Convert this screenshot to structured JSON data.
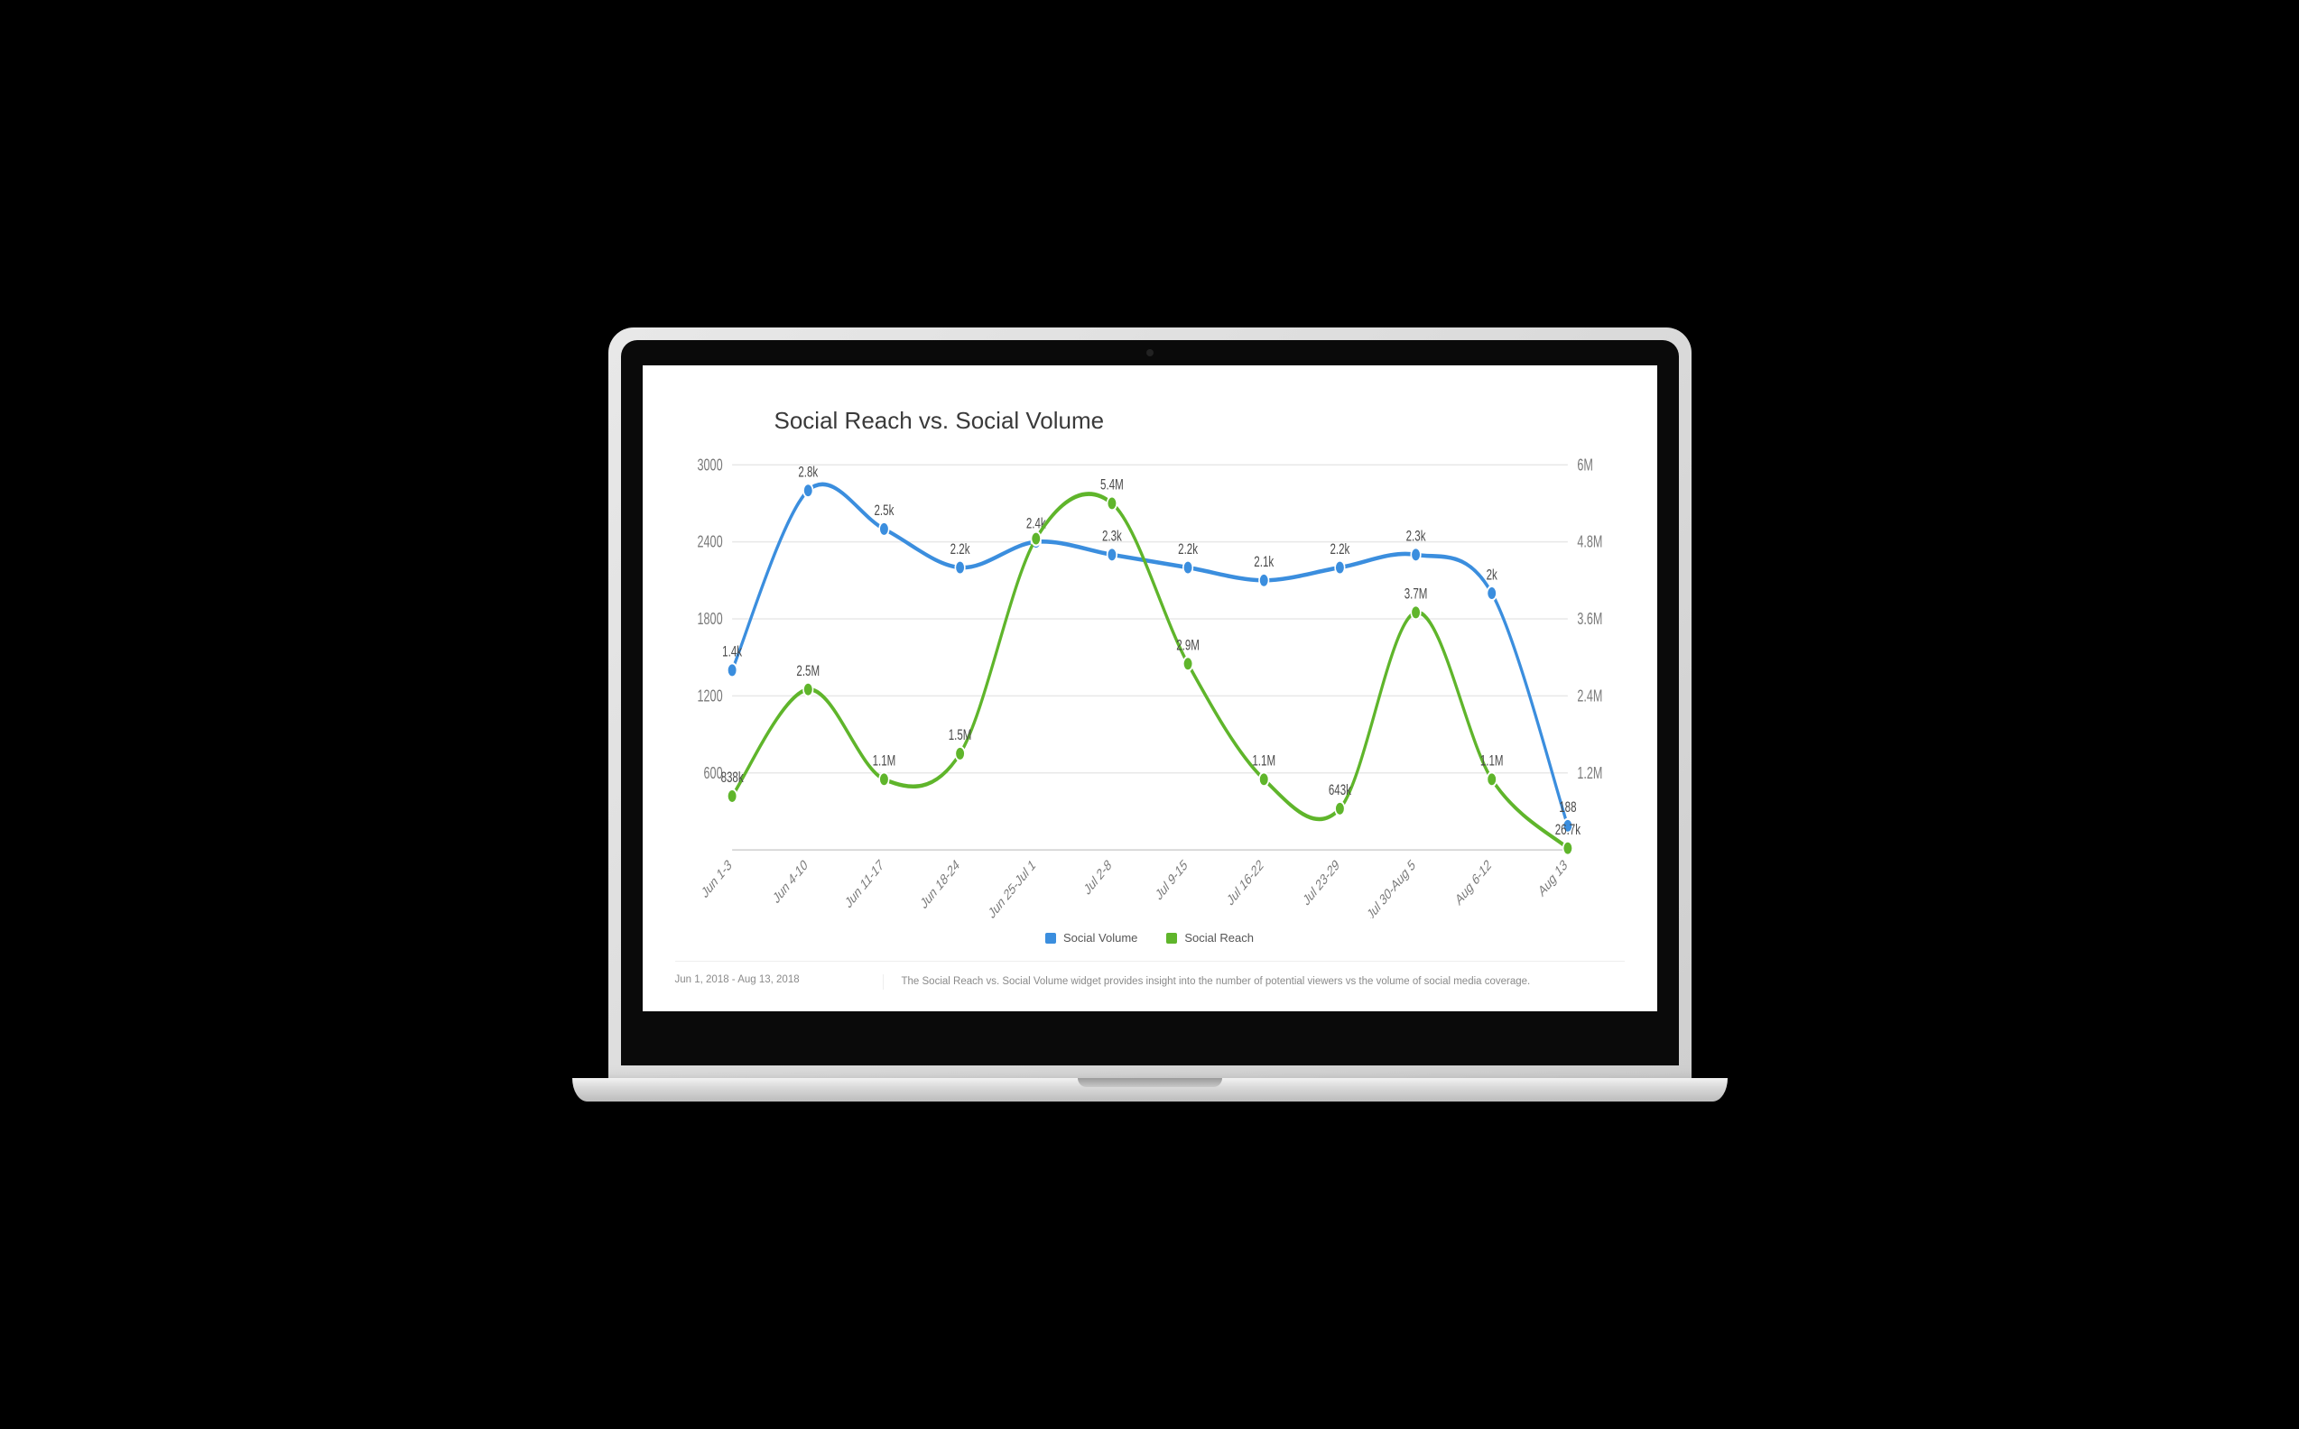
{
  "chart": {
    "type": "line-dual-axis",
    "title": "Social Reach vs. Social Volume",
    "title_fontsize": 26,
    "title_color": "#3a3a3a",
    "background_color": "#ffffff",
    "grid_color": "#e8e8e8",
    "axis_color": "#cfcfcf",
    "tick_font_color": "#7a7a7a",
    "data_label_color": "#4a4a4a",
    "line_width": 3,
    "marker_radius": 5,
    "categories": [
      "Jun 1-3",
      "Jun 4-10",
      "Jun 11-17",
      "Jun 18-24",
      "Jun 25-Jul 1",
      "Jul 2-8",
      "Jul 9-15",
      "Jul 16-22",
      "Jul 23-29",
      "Jul 30-Aug 5",
      "Aug 6-12",
      "Aug 13"
    ],
    "left_axis": {
      "label": "Social Volume",
      "min": 0,
      "max": 3000,
      "ticks": [
        600,
        1200,
        1800,
        2400,
        3000
      ]
    },
    "right_axis": {
      "label": "Social Reach",
      "min": 0,
      "max": 6000000,
      "ticks": [
        1200000,
        2400000,
        3600000,
        4800000,
        6000000
      ],
      "tick_labels": [
        "1.2M",
        "2.4M",
        "3.6M",
        "4.8M",
        "6M"
      ]
    },
    "series": [
      {
        "name": "Social Volume",
        "axis": "left",
        "color": "#3b8ede",
        "values": [
          1400,
          2800,
          2500,
          2200,
          2400,
          2300,
          2200,
          2100,
          2200,
          2300,
          2000,
          188
        ],
        "point_labels": [
          "1.4k",
          "2.8k",
          "2.5k",
          "2.2k",
          "2.4k",
          "2.3k",
          "2.2k",
          "2.1k",
          "2.2k",
          "2.3k",
          "2k",
          "188"
        ]
      },
      {
        "name": "Social Reach",
        "axis": "right",
        "color": "#5fb52b",
        "values": [
          838000,
          2500000,
          1100000,
          1500000,
          4850000,
          5400000,
          2900000,
          1100000,
          643000,
          3700000,
          1100000,
          26700
        ],
        "point_labels": [
          "838k",
          "2.5M",
          "1.1M",
          "1.5M",
          "",
          "5.4M",
          "2.9M",
          "1.1M",
          "643k",
          "3.7M",
          "1.1M",
          "26.7k"
        ]
      }
    ],
    "legend_labels": {
      "volume": "Social Volume",
      "reach": "Social Reach"
    }
  },
  "footer": {
    "date_range": "Jun 1, 2018 - Aug 13, 2018",
    "description": "The Social Reach vs. Social Volume widget provides insight into the number of potential viewers vs the volume of social media coverage."
  },
  "device": {
    "frame_color": "#d4d4d4",
    "bezel_color": "#0a0a0a"
  }
}
